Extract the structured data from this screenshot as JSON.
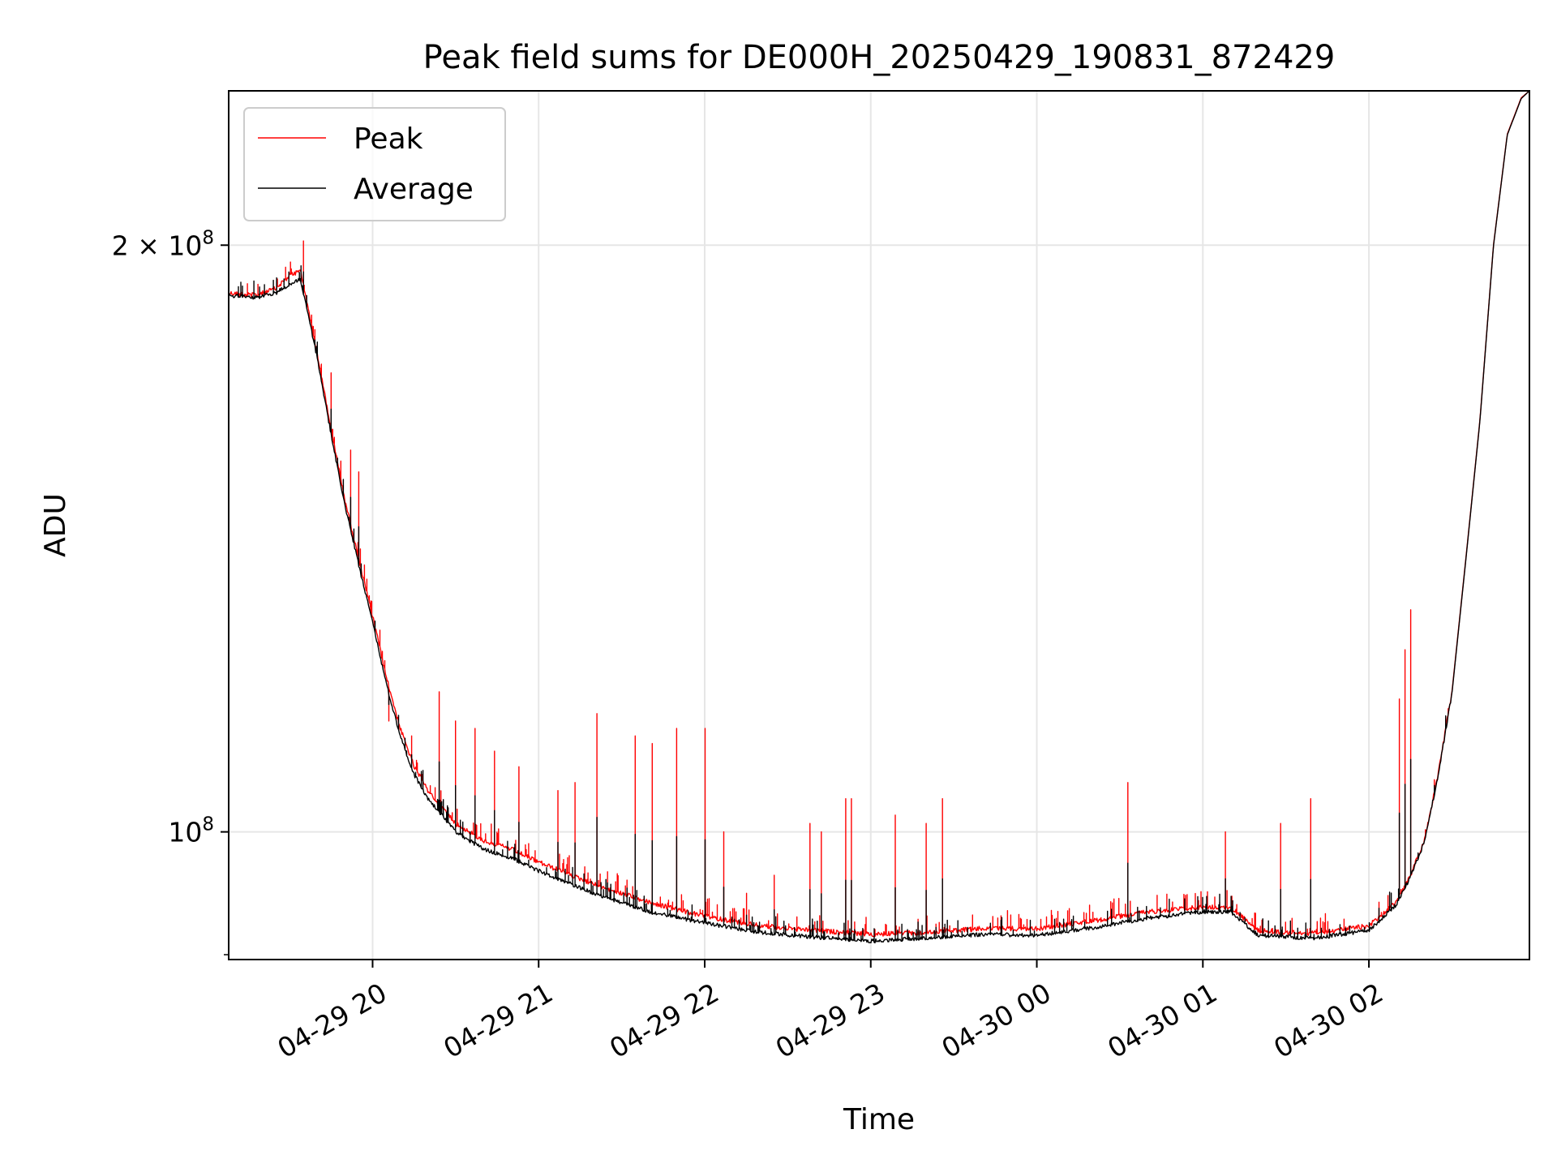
{
  "chart_data": {
    "type": "line",
    "title": "Peak field sums for DE000H_20250429_190831_872429",
    "xlabel": "Time",
    "ylabel": "ADU",
    "y_scale": "log",
    "ylim": [
      86000000,
      240000000
    ],
    "x_range": [
      "2025-04-29 19:08",
      "2025-04-30 02:58"
    ],
    "grid": true,
    "legend_placement": "top-left",
    "x_ticks": [
      {
        "time": "2025-04-29 20:00",
        "label": "04-29 20"
      },
      {
        "time": "2025-04-29 21:00",
        "label": "04-29 21"
      },
      {
        "time": "2025-04-29 22:00",
        "label": "04-29 22"
      },
      {
        "time": "2025-04-29 23:00",
        "label": "04-29 23"
      },
      {
        "time": "2025-04-30 00:00",
        "label": "04-30 00"
      },
      {
        "time": "2025-04-30 01:00",
        "label": "04-30 01"
      },
      {
        "time": "2025-04-30 02:00",
        "label": "04-30 02"
      }
    ],
    "y_ticks": [
      {
        "value": 100000000,
        "base": "10",
        "exp": "8",
        "coef": ""
      },
      {
        "value": 200000000,
        "base": "10",
        "exp": "8",
        "coef": "2 × "
      }
    ],
    "series": [
      {
        "name": "Peak",
        "color": "#ff0000",
        "x": [
          "2025-04-29 19:08",
          "2025-04-29 19:18",
          "2025-04-29 19:25",
          "2025-04-29 19:30",
          "2025-04-29 19:34",
          "2025-04-29 19:40",
          "2025-04-29 19:45",
          "2025-04-29 19:50",
          "2025-04-29 19:55",
          "2025-04-29 20:00",
          "2025-04-29 20:05",
          "2025-04-29 20:10",
          "2025-04-29 20:15",
          "2025-04-29 20:20",
          "2025-04-29 20:25",
          "2025-04-29 20:30",
          "2025-04-29 20:40",
          "2025-04-29 20:50",
          "2025-04-29 21:00",
          "2025-04-29 21:20",
          "2025-04-29 21:40",
          "2025-04-29 22:00",
          "2025-04-29 22:20",
          "2025-04-29 22:40",
          "2025-04-29 23:00",
          "2025-04-29 23:20",
          "2025-04-29 23:40",
          "2025-04-30 00:00",
          "2025-04-30 00:20",
          "2025-04-30 00:40",
          "2025-04-30 01:00",
          "2025-04-30 01:10",
          "2025-04-30 01:20",
          "2025-04-30 01:40",
          "2025-04-30 02:00",
          "2025-04-30 02:10",
          "2025-04-30 02:15",
          "2025-04-30 02:20",
          "2025-04-30 02:25",
          "2025-04-30 02:30",
          "2025-04-30 02:35",
          "2025-04-30 02:40",
          "2025-04-30 02:45",
          "2025-04-30 02:50",
          "2025-04-30 02:55",
          "2025-04-30 02:58"
        ],
        "values": [
          189000000,
          188500000,
          190000000,
          193000000,
          194000000,
          176000000,
          161000000,
          148000000,
          138000000,
          129000000,
          120000000,
          113000000,
          108000000,
          105000000,
          103000000,
          101000000,
          99000000,
          98000000,
          96500000,
          94000000,
          92000000,
          90500000,
          89500000,
          89000000,
          88600000,
          88800000,
          89200000,
          89200000,
          90000000,
          91000000,
          91500000,
          91500000,
          89000000,
          88700000,
          89500000,
          92000000,
          95000000,
          99000000,
          107000000,
          118000000,
          138000000,
          162000000,
          200000000,
          228000000,
          238000000,
          240000000
        ],
        "spikes": [
          {
            "x": "2025-04-29 19:35",
            "value": 201000000
          },
          {
            "x": "2025-04-29 19:39",
            "value": 181000000
          },
          {
            "x": "2025-04-29 19:45",
            "value": 172000000
          },
          {
            "x": "2025-04-29 19:52",
            "value": 157000000
          },
          {
            "x": "2025-04-29 19:55",
            "value": 153000000
          },
          {
            "x": "2025-04-29 20:06",
            "value": 114000000
          },
          {
            "x": "2025-04-29 20:14",
            "value": 112000000
          },
          {
            "x": "2025-04-29 20:24",
            "value": 118000000
          },
          {
            "x": "2025-04-29 20:30",
            "value": 114000000
          },
          {
            "x": "2025-04-29 20:37",
            "value": 113000000
          },
          {
            "x": "2025-04-29 20:44",
            "value": 110000000
          },
          {
            "x": "2025-04-29 20:53",
            "value": 108000000
          },
          {
            "x": "2025-04-29 21:07",
            "value": 105000000
          },
          {
            "x": "2025-04-29 21:13",
            "value": 106000000
          },
          {
            "x": "2025-04-29 21:21",
            "value": 115000000
          },
          {
            "x": "2025-04-29 21:35",
            "value": 112000000
          },
          {
            "x": "2025-04-29 21:41",
            "value": 111000000
          },
          {
            "x": "2025-04-29 21:50",
            "value": 113000000
          },
          {
            "x": "2025-04-29 22:00",
            "value": 113000000
          },
          {
            "x": "2025-04-29 22:07",
            "value": 100000000
          },
          {
            "x": "2025-04-29 22:15",
            "value": 93000000
          },
          {
            "x": "2025-04-29 22:25",
            "value": 95000000
          },
          {
            "x": "2025-04-29 22:38",
            "value": 101000000
          },
          {
            "x": "2025-04-29 22:42",
            "value": 100000000
          },
          {
            "x": "2025-04-29 22:51",
            "value": 104000000
          },
          {
            "x": "2025-04-29 22:53",
            "value": 104000000
          },
          {
            "x": "2025-04-29 23:09",
            "value": 102000000
          },
          {
            "x": "2025-04-29 23:20",
            "value": 101000000
          },
          {
            "x": "2025-04-29 23:26",
            "value": 104000000
          },
          {
            "x": "2025-04-30 00:33",
            "value": 106000000
          },
          {
            "x": "2025-04-30 01:08",
            "value": 100000000
          },
          {
            "x": "2025-04-30 01:28",
            "value": 101000000
          },
          {
            "x": "2025-04-30 01:39",
            "value": 104000000
          },
          {
            "x": "2025-04-30 02:11",
            "value": 117000000
          },
          {
            "x": "2025-04-30 02:13",
            "value": 124000000
          },
          {
            "x": "2025-04-30 02:15",
            "value": 130000000
          }
        ]
      },
      {
        "name": "Average",
        "color": "#000000",
        "x": [
          "2025-04-29 19:08",
          "2025-04-29 19:18",
          "2025-04-29 19:25",
          "2025-04-29 19:30",
          "2025-04-29 19:34",
          "2025-04-29 19:40",
          "2025-04-29 19:45",
          "2025-04-29 19:50",
          "2025-04-29 19:55",
          "2025-04-29 20:00",
          "2025-04-29 20:05",
          "2025-04-29 20:10",
          "2025-04-29 20:15",
          "2025-04-29 20:20",
          "2025-04-29 20:25",
          "2025-04-29 20:30",
          "2025-04-29 20:40",
          "2025-04-29 20:50",
          "2025-04-29 21:00",
          "2025-04-29 21:20",
          "2025-04-29 21:40",
          "2025-04-29 22:00",
          "2025-04-29 22:20",
          "2025-04-29 22:40",
          "2025-04-29 23:00",
          "2025-04-29 23:20",
          "2025-04-29 23:40",
          "2025-04-30 00:00",
          "2025-04-30 00:20",
          "2025-04-30 00:40",
          "2025-04-30 01:00",
          "2025-04-30 01:10",
          "2025-04-30 01:20",
          "2025-04-30 01:40",
          "2025-04-30 02:00",
          "2025-04-30 02:10",
          "2025-04-30 02:15",
          "2025-04-30 02:20",
          "2025-04-30 02:25",
          "2025-04-30 02:30",
          "2025-04-30 02:35",
          "2025-04-30 02:40",
          "2025-04-30 02:45",
          "2025-04-30 02:50",
          "2025-04-30 02:55",
          "2025-04-30 02:58"
        ],
        "values": [
          188500000,
          188000000,
          189000000,
          191000000,
          192000000,
          175000000,
          160000000,
          147000000,
          137000000,
          128000000,
          119000000,
          112000000,
          107000000,
          104000000,
          102000000,
          100000000,
          98000000,
          97000000,
          95500000,
          93000000,
          91000000,
          89800000,
          88800000,
          88300000,
          87900000,
          88200000,
          88600000,
          88500000,
          89300000,
          90300000,
          91000000,
          91000000,
          88500000,
          88200000,
          89000000,
          91800000,
          94800000,
          98800000,
          106800000,
          117800000,
          137800000,
          161800000,
          199800000,
          227800000,
          237800000,
          240000000
        ]
      }
    ]
  }
}
